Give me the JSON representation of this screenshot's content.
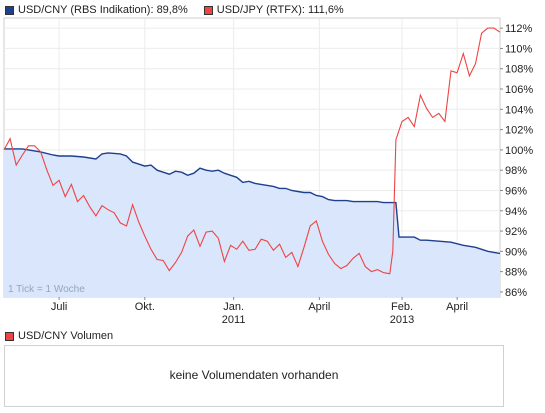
{
  "legend": {
    "series1_label": "USD/CNY (RBS Indikation): 89,8%",
    "series1_color": "#1f3f8f",
    "series2_label": "USD/JPY (RTFX): 111,6%",
    "series2_color": "#ee4444"
  },
  "chart_note": "1 Tick = 1 Woche",
  "volume": {
    "legend_label": "USD/CNY Volumen",
    "legend_color": "#ee4444",
    "message": "keine Volumendaten vorhanden"
  },
  "chart_data": {
    "type": "line",
    "ylim": [
      85.5,
      113
    ],
    "yticks": [
      "86%",
      "88%",
      "90%",
      "92%",
      "94%",
      "96%",
      "98%",
      "100%",
      "102%",
      "104%",
      "106%",
      "108%",
      "110%",
      "112%"
    ],
    "ytick_values": [
      86,
      88,
      90,
      92,
      94,
      96,
      98,
      100,
      102,
      104,
      106,
      108,
      110,
      112
    ],
    "xlim": [
      0,
      162
    ],
    "xticks": [
      {
        "x": 18,
        "label": "Juli",
        "sub": ""
      },
      {
        "x": 46,
        "label": "Okt.",
        "sub": ""
      },
      {
        "x": 75,
        "label": "Jan.",
        "sub": "2011"
      },
      {
        "x": 103,
        "label": "April",
        "sub": ""
      },
      {
        "x": 130,
        "label": "Feb.",
        "sub": "2013"
      },
      {
        "x": 148,
        "label": "April",
        "sub": ""
      }
    ],
    "grid": true,
    "legend_position": "top-left",
    "series": [
      {
        "name": "USD/CNY (RBS Indikation)",
        "color": "#1f3f8f",
        "fill": "#d9e6fb",
        "points": [
          [
            0,
            100.1
          ],
          [
            6,
            100.1
          ],
          [
            8,
            100.0
          ],
          [
            12,
            99.8
          ],
          [
            16,
            99.5
          ],
          [
            18,
            99.4
          ],
          [
            22,
            99.4
          ],
          [
            26,
            99.3
          ],
          [
            30,
            99.1
          ],
          [
            32,
            99.6
          ],
          [
            34,
            99.7
          ],
          [
            38,
            99.6
          ],
          [
            40,
            99.4
          ],
          [
            42,
            98.8
          ],
          [
            44,
            98.6
          ],
          [
            46,
            98.4
          ],
          [
            48,
            98.5
          ],
          [
            50,
            98.0
          ],
          [
            52,
            97.8
          ],
          [
            54,
            97.6
          ],
          [
            56,
            97.9
          ],
          [
            58,
            97.8
          ],
          [
            60,
            97.5
          ],
          [
            62,
            97.7
          ],
          [
            64,
            98.2
          ],
          [
            66,
            98.0
          ],
          [
            68,
            97.9
          ],
          [
            70,
            98.0
          ],
          [
            72,
            97.7
          ],
          [
            74,
            97.5
          ],
          [
            76,
            97.3
          ],
          [
            78,
            96.8
          ],
          [
            80,
            96.9
          ],
          [
            82,
            96.7
          ],
          [
            84,
            96.6
          ],
          [
            86,
            96.5
          ],
          [
            88,
            96.4
          ],
          [
            90,
            96.2
          ],
          [
            92,
            96.2
          ],
          [
            94,
            96.0
          ],
          [
            96,
            95.9
          ],
          [
            98,
            95.8
          ],
          [
            100,
            95.8
          ],
          [
            102,
            95.5
          ],
          [
            104,
            95.4
          ],
          [
            106,
            95.1
          ],
          [
            108,
            95.0
          ],
          [
            110,
            95.0
          ],
          [
            112,
            95.0
          ],
          [
            114,
            94.9
          ],
          [
            116,
            94.9
          ],
          [
            118,
            94.9
          ],
          [
            120,
            94.9
          ],
          [
            122,
            94.9
          ],
          [
            124,
            94.8
          ],
          [
            126,
            94.8
          ],
          [
            128,
            94.8
          ],
          [
            129,
            91.4
          ],
          [
            132,
            91.4
          ],
          [
            134,
            91.4
          ],
          [
            136,
            91.1
          ],
          [
            138,
            91.1
          ],
          [
            142,
            91.0
          ],
          [
            146,
            90.9
          ],
          [
            150,
            90.6
          ],
          [
            154,
            90.4
          ],
          [
            156,
            90.2
          ],
          [
            158,
            90.0
          ],
          [
            160,
            89.9
          ],
          [
            162,
            89.8
          ]
        ]
      },
      {
        "name": "USD/JPY (RTFX)",
        "color": "#ee4444",
        "points": [
          [
            0,
            100.0
          ],
          [
            2,
            101.1
          ],
          [
            4,
            98.5
          ],
          [
            6,
            99.5
          ],
          [
            8,
            100.4
          ],
          [
            10,
            100.4
          ],
          [
            12,
            99.8
          ],
          [
            14,
            98.0
          ],
          [
            16,
            96.5
          ],
          [
            18,
            97.0
          ],
          [
            20,
            95.4
          ],
          [
            22,
            96.6
          ],
          [
            24,
            94.9
          ],
          [
            26,
            95.5
          ],
          [
            28,
            94.4
          ],
          [
            30,
            93.5
          ],
          [
            32,
            94.5
          ],
          [
            34,
            94.1
          ],
          [
            36,
            93.8
          ],
          [
            38,
            92.8
          ],
          [
            40,
            92.5
          ],
          [
            42,
            94.6
          ],
          [
            44,
            92.9
          ],
          [
            46,
            91.5
          ],
          [
            48,
            90.2
          ],
          [
            50,
            89.2
          ],
          [
            52,
            89.1
          ],
          [
            54,
            88.1
          ],
          [
            56,
            88.9
          ],
          [
            58,
            89.9
          ],
          [
            60,
            91.5
          ],
          [
            62,
            92.1
          ],
          [
            64,
            90.5
          ],
          [
            66,
            91.9
          ],
          [
            68,
            92.0
          ],
          [
            70,
            91.3
          ],
          [
            72,
            89.0
          ],
          [
            74,
            90.6
          ],
          [
            76,
            90.2
          ],
          [
            78,
            91.0
          ],
          [
            80,
            90.1
          ],
          [
            82,
            90.2
          ],
          [
            84,
            91.2
          ],
          [
            86,
            91.0
          ],
          [
            88,
            90.1
          ],
          [
            90,
            90.7
          ],
          [
            92,
            89.4
          ],
          [
            94,
            89.9
          ],
          [
            96,
            88.5
          ],
          [
            98,
            90.4
          ],
          [
            100,
            92.5
          ],
          [
            102,
            93.0
          ],
          [
            104,
            91.0
          ],
          [
            106,
            89.7
          ],
          [
            108,
            88.8
          ],
          [
            110,
            88.3
          ],
          [
            112,
            88.6
          ],
          [
            114,
            89.3
          ],
          [
            116,
            89.8
          ],
          [
            118,
            88.5
          ],
          [
            120,
            88.0
          ],
          [
            122,
            88.2
          ],
          [
            124,
            87.9
          ],
          [
            126,
            87.8
          ],
          [
            127,
            90.0
          ],
          [
            128,
            101.0
          ],
          [
            130,
            102.8
          ],
          [
            132,
            103.2
          ],
          [
            134,
            102.3
          ],
          [
            136,
            105.4
          ],
          [
            138,
            104.1
          ],
          [
            140,
            103.2
          ],
          [
            142,
            103.6
          ],
          [
            144,
            102.8
          ],
          [
            146,
            107.8
          ],
          [
            148,
            107.6
          ],
          [
            150,
            109.5
          ],
          [
            152,
            107.3
          ],
          [
            154,
            108.5
          ],
          [
            156,
            111.5
          ],
          [
            158,
            112.0
          ],
          [
            160,
            112.0
          ],
          [
            162,
            111.6
          ]
        ]
      }
    ]
  }
}
